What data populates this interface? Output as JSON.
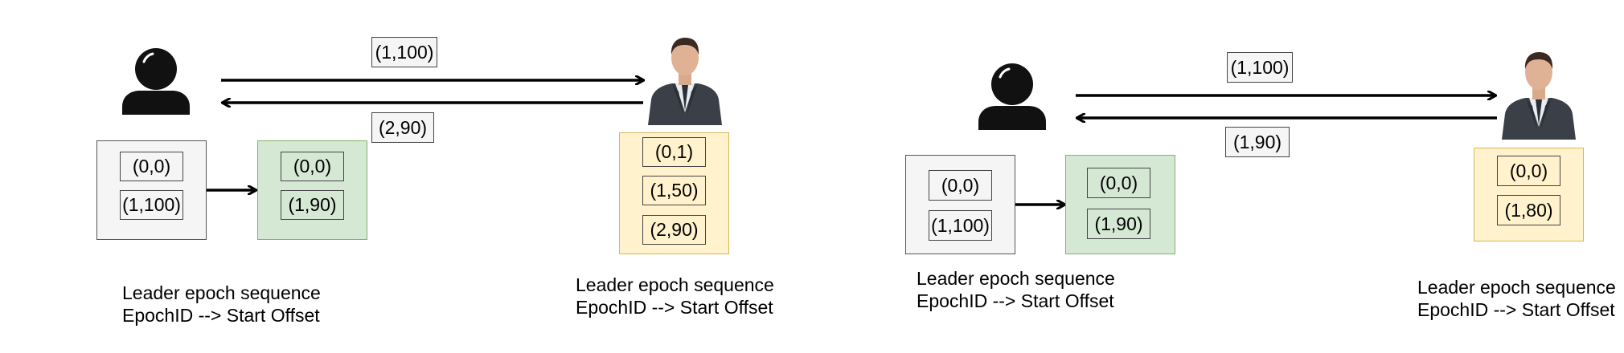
{
  "scenarios": [
    {
      "arrow_right_label": "(1,100)",
      "arrow_left_label": "(2,90)",
      "box1": [
        "(0,0)",
        "(1,100)"
      ],
      "box2": [
        "(0,0)",
        "(1,90)"
      ],
      "box3": [
        "(0,1)",
        "(1,50)",
        "(2,90)"
      ],
      "caption_left": [
        "Leader epoch sequence",
        "EpochID --> Start Offset"
      ],
      "caption_right": [
        "Leader epoch sequence",
        "EpochID --> Start Offset"
      ]
    },
    {
      "arrow_right_label": "(1,100)",
      "arrow_left_label": "(1,90)",
      "box1": [
        "(0,0)",
        "(1,100)"
      ],
      "box2": [
        "(0,0)",
        "(1,90)"
      ],
      "box3": [
        "(0,0)",
        "(1,80)"
      ],
      "caption_left": [
        "Leader epoch sequence",
        "EpochID --> Start Offset"
      ],
      "caption_right": [
        "Leader epoch sequence",
        "EpochID --> Start Offset"
      ]
    }
  ],
  "colors": {
    "green_fill": "#d5e8d4",
    "yellow_fill": "#fff2cc",
    "gray_fill": "#f5f5f5"
  },
  "icons": [
    "user-silhouette-icon",
    "businessman-icon"
  ]
}
